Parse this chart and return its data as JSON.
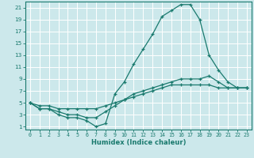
{
  "xlabel": "Humidex (Indice chaleur)",
  "background_color": "#cce8eb",
  "grid_color": "#ffffff",
  "line_color": "#1a7a6e",
  "xlim": [
    -0.5,
    23.5
  ],
  "ylim": [
    0.5,
    22
  ],
  "xticks": [
    0,
    1,
    2,
    3,
    4,
    5,
    6,
    7,
    8,
    9,
    10,
    11,
    12,
    13,
    14,
    15,
    16,
    17,
    18,
    19,
    20,
    21,
    22,
    23
  ],
  "yticks": [
    1,
    3,
    5,
    7,
    9,
    11,
    13,
    15,
    17,
    19,
    21
  ],
  "curve1_x": [
    0,
    1,
    2,
    3,
    4,
    5,
    6,
    7,
    8,
    9,
    10,
    11,
    12,
    13,
    14,
    15,
    16,
    17,
    18,
    19,
    20,
    21,
    22,
    23
  ],
  "curve1_y": [
    5,
    4,
    4,
    3,
    2.5,
    2.5,
    2,
    1,
    1.5,
    6.5,
    8.5,
    11.5,
    14,
    16.5,
    19.5,
    20.5,
    21.5,
    21.5,
    19,
    13,
    10.5,
    8.5,
    7.5,
    7.5
  ],
  "curve2_x": [
    0,
    1,
    2,
    3,
    4,
    5,
    6,
    7,
    8,
    9,
    10,
    11,
    12,
    13,
    14,
    15,
    16,
    17,
    18,
    19,
    20,
    21,
    22,
    23
  ],
  "curve2_y": [
    5,
    4,
    4,
    3.5,
    3,
    3,
    2.5,
    2.5,
    3.5,
    4.5,
    5.5,
    6.5,
    7,
    7.5,
    8,
    8.5,
    9,
    9,
    9,
    9.5,
    8.5,
    7.5,
    7.5,
    7.5
  ],
  "curve3_x": [
    0,
    1,
    2,
    3,
    4,
    5,
    6,
    7,
    8,
    9,
    10,
    11,
    12,
    13,
    14,
    15,
    16,
    17,
    18,
    19,
    20,
    21,
    22,
    23
  ],
  "curve3_y": [
    5,
    4.5,
    4.5,
    4,
    4,
    4,
    4,
    4,
    4.5,
    5,
    5.5,
    6,
    6.5,
    7,
    7.5,
    8,
    8,
    8,
    8,
    8,
    7.5,
    7.5,
    7.5,
    7.5
  ]
}
